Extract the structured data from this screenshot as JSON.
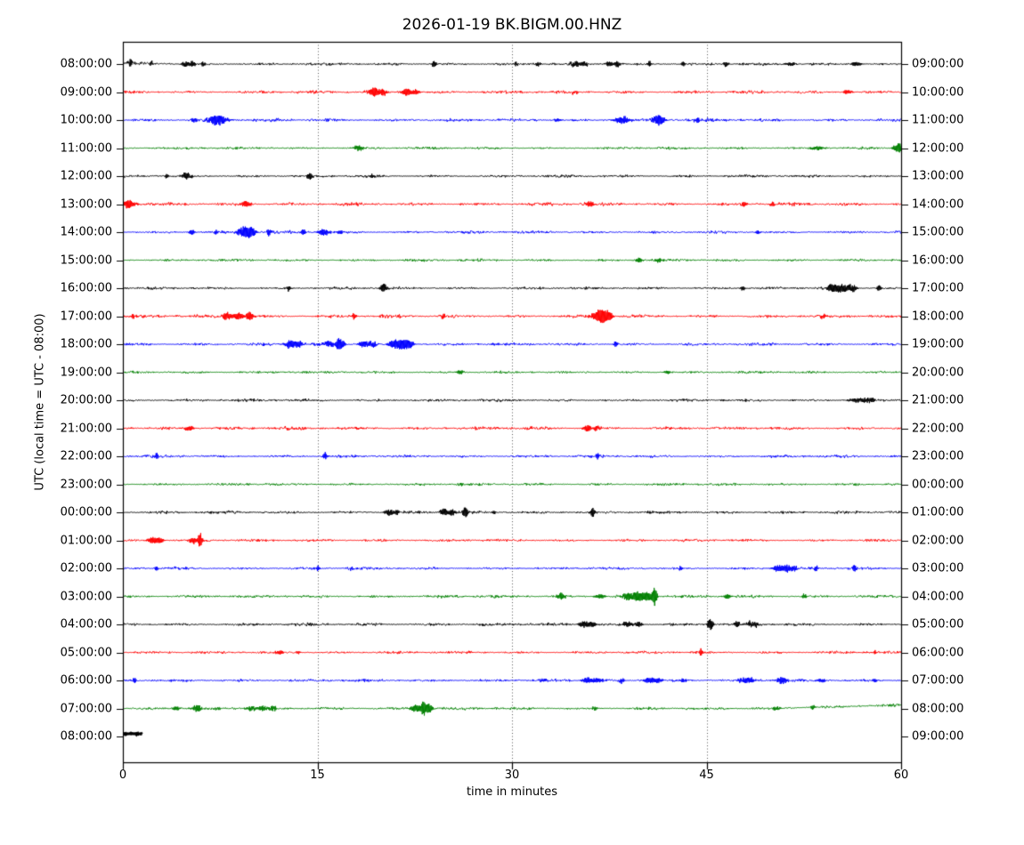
{
  "title": "2026-01-19 BK.BIGM.00.HNZ",
  "chart_data": {
    "type": "line",
    "subtype": "seismic-helicorder-dayplot",
    "title": "2026-01-19 BK.BIGM.00.HNZ",
    "xlabel": "time in minutes",
    "ylabel": "UTC (local time = UTC - 08:00)",
    "xlim": [
      0,
      60
    ],
    "x_ticks": [
      0,
      15,
      30,
      45,
      60
    ],
    "grid_minutes": [
      15,
      30,
      45
    ],
    "grid_style": "vertical-dotted",
    "minutes_per_row": 60,
    "color_cycle": [
      "#000000",
      "#ff0000",
      "#0000ff",
      "#008000"
    ],
    "events_format": "[minute, amplitude_px, width_min]",
    "rows": [
      {
        "left_label": "08:00:00",
        "right_label": "09:00:00",
        "color": "#000000",
        "noise": 1.5,
        "span": [
          0,
          60
        ],
        "drift": [
          [
            0,
            -1.5
          ],
          [
            4,
            0
          ],
          [
            60,
            0
          ]
        ],
        "events": [
          [
            0.6,
            4,
            0.15
          ],
          [
            2.2,
            3,
            0.1
          ],
          [
            4.8,
            3.5,
            0.2
          ],
          [
            5.4,
            3.5,
            0.15
          ],
          [
            6.2,
            3,
            0.1
          ],
          [
            24,
            4,
            0.12
          ],
          [
            30.3,
            3,
            0.1
          ],
          [
            32,
            2.5,
            0.15
          ],
          [
            34.9,
            3.5,
            0.25
          ],
          [
            35.6,
            3.5,
            0.2
          ],
          [
            37.5,
            3,
            0.2
          ],
          [
            38.1,
            3.5,
            0.15
          ],
          [
            40.6,
            3,
            0.1
          ],
          [
            43.2,
            3,
            0.1
          ],
          [
            46.5,
            3.5,
            0.12
          ],
          [
            51.5,
            2,
            0.3
          ],
          [
            56.5,
            2.5,
            0.3
          ]
        ]
      },
      {
        "left_label": "09:00:00",
        "right_label": "10:00:00",
        "color": "#ff0000",
        "noise": 1.7,
        "span": [
          0,
          60
        ],
        "events": [
          [
            19.4,
            5,
            0.35
          ],
          [
            20.1,
            3.5,
            0.2
          ],
          [
            21.9,
            4,
            0.3
          ],
          [
            22.6,
            3,
            0.2
          ],
          [
            34.9,
            2,
            0.2
          ],
          [
            55.9,
            2.5,
            0.25
          ]
        ]
      },
      {
        "left_label": "10:00:00",
        "right_label": "11:00:00",
        "color": "#0000ff",
        "noise": 1.7,
        "span": [
          0,
          60
        ],
        "events": [
          [
            5.5,
            3,
            0.15
          ],
          [
            7.3,
            6,
            0.5
          ],
          [
            33.5,
            2,
            0.2
          ],
          [
            38.5,
            4,
            0.45
          ],
          [
            41.3,
            6,
            0.35
          ],
          [
            44.3,
            3.5,
            0.15
          ]
        ]
      },
      {
        "left_label": "11:00:00",
        "right_label": "12:00:00",
        "color": "#008000",
        "noise": 1.4,
        "span": [
          0,
          60
        ],
        "events": [
          [
            18.2,
            2.5,
            0.3
          ],
          [
            53.5,
            2.2,
            0.4
          ],
          [
            59.8,
            5,
            0.3
          ]
        ]
      },
      {
        "left_label": "12:00:00",
        "right_label": "13:00:00",
        "color": "#000000",
        "noise": 1.5,
        "span": [
          0,
          60
        ],
        "events": [
          [
            3.4,
            3,
            0.1
          ],
          [
            4.9,
            4.5,
            0.25
          ],
          [
            14.4,
            3.5,
            0.15
          ],
          [
            19.2,
            2.5,
            0.1
          ]
        ]
      },
      {
        "left_label": "13:00:00",
        "right_label": "14:00:00",
        "color": "#ff0000",
        "noise": 1.8,
        "span": [
          0,
          60
        ],
        "events": [
          [
            0.4,
            5,
            0.4
          ],
          [
            9.5,
            4,
            0.25
          ],
          [
            36,
            3,
            0.2
          ],
          [
            47.9,
            2.5,
            0.15
          ],
          [
            50,
            2,
            0.1
          ]
        ]
      },
      {
        "left_label": "14:00:00",
        "right_label": "15:00:00",
        "color": "#0000ff",
        "noise": 1.6,
        "span": [
          0,
          60
        ],
        "events": [
          [
            5.3,
            3.5,
            0.15
          ],
          [
            7.2,
            3,
            0.1
          ],
          [
            9.3,
            6,
            0.35
          ],
          [
            9.9,
            5,
            0.25
          ],
          [
            11.3,
            4,
            0.15
          ],
          [
            13.9,
            3.5,
            0.15
          ],
          [
            15.5,
            4,
            0.3
          ],
          [
            16.8,
            3,
            0.2
          ],
          [
            49,
            2.5,
            0.15
          ]
        ]
      },
      {
        "left_label": "15:00:00",
        "right_label": "16:00:00",
        "color": "#008000",
        "noise": 1.4,
        "span": [
          0,
          60
        ],
        "events": [
          [
            39.8,
            2.5,
            0.2
          ],
          [
            41.3,
            2.5,
            0.15
          ]
        ]
      },
      {
        "left_label": "16:00:00",
        "right_label": "17:00:00",
        "color": "#000000",
        "noise": 1.5,
        "span": [
          0,
          60
        ],
        "events": [
          [
            12.8,
            3.5,
            0.12
          ],
          [
            20.1,
            5,
            0.2
          ],
          [
            47.8,
            3,
            0.12
          ],
          [
            54.8,
            4,
            0.4
          ],
          [
            55.6,
            4.5,
            0.3
          ],
          [
            56.3,
            4,
            0.2
          ],
          [
            58.3,
            3.5,
            0.12
          ]
        ]
      },
      {
        "left_label": "17:00:00",
        "right_label": "18:00:00",
        "color": "#ff0000",
        "noise": 1.7,
        "span": [
          0,
          60
        ],
        "events": [
          [
            0.8,
            3,
            0.1
          ],
          [
            8,
            4,
            0.25
          ],
          [
            8.9,
            4.5,
            0.3
          ],
          [
            9.8,
            5,
            0.2
          ],
          [
            17.8,
            3.5,
            0.15
          ],
          [
            24.7,
            3,
            0.12
          ],
          [
            36.5,
            5,
            0.3
          ],
          [
            37,
            7,
            0.25
          ],
          [
            37.5,
            5,
            0.2
          ],
          [
            54,
            2.5,
            0.2
          ]
        ]
      },
      {
        "left_label": "18:00:00",
        "right_label": "19:00:00",
        "color": "#0000ff",
        "noise": 1.7,
        "span": [
          0,
          60
        ],
        "events": [
          [
            12.9,
            5,
            0.3
          ],
          [
            13.6,
            3.5,
            0.2
          ],
          [
            15.9,
            4,
            0.2
          ],
          [
            16.7,
            7,
            0.25
          ],
          [
            18.6,
            4,
            0.3
          ],
          [
            19.3,
            3.5,
            0.2
          ],
          [
            20.9,
            4.5,
            0.3
          ],
          [
            21.5,
            5,
            0.3
          ],
          [
            22.1,
            4.5,
            0.25
          ],
          [
            38,
            3,
            0.12
          ]
        ]
      },
      {
        "left_label": "19:00:00",
        "right_label": "20:00:00",
        "color": "#008000",
        "noise": 1.4,
        "span": [
          0,
          60
        ],
        "events": [
          [
            26,
            2,
            0.2
          ],
          [
            42,
            2,
            0.2
          ]
        ]
      },
      {
        "left_label": "20:00:00",
        "right_label": "21:00:00",
        "color": "#000000",
        "noise": 1.5,
        "span": [
          0,
          60
        ],
        "events": [
          [
            14,
            1.8,
            0.2
          ],
          [
            56.6,
            2.5,
            0.5
          ],
          [
            57.6,
            2.5,
            0.3
          ]
        ]
      },
      {
        "left_label": "21:00:00",
        "right_label": "22:00:00",
        "color": "#ff0000",
        "noise": 1.8,
        "span": [
          0,
          60
        ],
        "events": [
          [
            5.1,
            3,
            0.25
          ],
          [
            35.8,
            4,
            0.2
          ],
          [
            36.6,
            2.5,
            0.3
          ]
        ]
      },
      {
        "left_label": "22:00:00",
        "right_label": "23:00:00",
        "color": "#0000ff",
        "noise": 1.6,
        "span": [
          0,
          60
        ],
        "events": [
          [
            2.6,
            3,
            0.12
          ],
          [
            15.6,
            4,
            0.12
          ],
          [
            36.6,
            3,
            0.1
          ]
        ]
      },
      {
        "left_label": "23:00:00",
        "right_label": "00:00:00",
        "color": "#008000",
        "noise": 1.5,
        "span": [
          0,
          60
        ],
        "events": [
          [
            26.1,
            2,
            0.15
          ]
        ]
      },
      {
        "left_label": "00:00:00",
        "right_label": "01:00:00",
        "color": "#000000",
        "noise": 1.7,
        "span": [
          0,
          60
        ],
        "events": [
          [
            20.5,
            3.5,
            0.25
          ],
          [
            21.1,
            3,
            0.15
          ],
          [
            24.8,
            4,
            0.25
          ],
          [
            25.4,
            3.5,
            0.15
          ],
          [
            26.4,
            6,
            0.15
          ],
          [
            28.6,
            2.5,
            0.1
          ],
          [
            36.2,
            4.5,
            0.15
          ]
        ]
      },
      {
        "left_label": "01:00:00",
        "right_label": "02:00:00",
        "color": "#ff0000",
        "noise": 1.5,
        "span": [
          0,
          60
        ],
        "events": [
          [
            2.3,
            3.5,
            0.3
          ],
          [
            2.9,
            3,
            0.2
          ],
          [
            5.4,
            3.5,
            0.2
          ],
          [
            5.95,
            9,
            0.12
          ]
        ]
      },
      {
        "left_label": "02:00:00",
        "right_label": "03:00:00",
        "color": "#0000ff",
        "noise": 1.5,
        "span": [
          0,
          60
        ],
        "events": [
          [
            2.6,
            2.5,
            0.1
          ],
          [
            15,
            2.5,
            0.1
          ],
          [
            17.6,
            2.2,
            0.1
          ],
          [
            43,
            2.5,
            0.1
          ],
          [
            50.5,
            3.5,
            0.3
          ],
          [
            51.2,
            4,
            0.25
          ],
          [
            51.8,
            3.5,
            0.2
          ],
          [
            53.5,
            3,
            0.15
          ],
          [
            56.4,
            3.5,
            0.1
          ]
        ]
      },
      {
        "left_label": "03:00:00",
        "right_label": "04:00:00",
        "color": "#008000",
        "noise": 1.6,
        "span": [
          0,
          60
        ],
        "events": [
          [
            33.8,
            4,
            0.25
          ],
          [
            36.8,
            2.5,
            0.3
          ],
          [
            38.9,
            4,
            0.3
          ],
          [
            39.6,
            4.5,
            0.25
          ],
          [
            40.1,
            4.5,
            0.25
          ],
          [
            40.6,
            4,
            0.2
          ],
          [
            41,
            11,
            0.12
          ],
          [
            46.6,
            2.5,
            0.2
          ],
          [
            52.5,
            2.5,
            0.15
          ]
        ]
      },
      {
        "left_label": "04:00:00",
        "right_label": "05:00:00",
        "color": "#000000",
        "noise": 1.7,
        "span": [
          0,
          60
        ],
        "events": [
          [
            35.5,
            3.5,
            0.3
          ],
          [
            36.2,
            3.5,
            0.2
          ],
          [
            38.9,
            3,
            0.3
          ],
          [
            39.8,
            3,
            0.2
          ],
          [
            45.3,
            7,
            0.15
          ],
          [
            47.3,
            3,
            0.15
          ],
          [
            48.3,
            3.5,
            0.25
          ],
          [
            48.8,
            3,
            0.15
          ]
        ]
      },
      {
        "left_label": "05:00:00",
        "right_label": "06:00:00",
        "color": "#ff0000",
        "noise": 1.5,
        "span": [
          0,
          60
        ],
        "events": [
          [
            12.1,
            2.5,
            0.2
          ],
          [
            13.5,
            2,
            0.15
          ],
          [
            44.6,
            4,
            0.12
          ],
          [
            58,
            2.5,
            0.1
          ]
        ]
      },
      {
        "left_label": "06:00:00",
        "right_label": "07:00:00",
        "color": "#0000ff",
        "noise": 1.6,
        "span": [
          0,
          60
        ],
        "events": [
          [
            0.9,
            3.5,
            0.12
          ],
          [
            32.4,
            2.5,
            0.15
          ],
          [
            35.8,
            3,
            0.3
          ],
          [
            36.6,
            3,
            0.25
          ],
          [
            38.5,
            2.5,
            0.15
          ],
          [
            40.6,
            3.5,
            0.3
          ],
          [
            41.3,
            3,
            0.2
          ],
          [
            43.2,
            2.5,
            0.15
          ],
          [
            47.8,
            3.5,
            0.25
          ],
          [
            48.4,
            3,
            0.2
          ],
          [
            50.8,
            4,
            0.3
          ],
          [
            53.9,
            2.5,
            0.2
          ],
          [
            58,
            2.5,
            0.12
          ]
        ]
      },
      {
        "left_label": "07:00:00",
        "right_label": "08:00:00",
        "color": "#008000",
        "noise": 1.6,
        "span": [
          0,
          60
        ],
        "drift": [
          [
            0,
            0
          ],
          [
            50,
            0
          ],
          [
            60,
            -4
          ]
        ],
        "events": [
          [
            4.1,
            2.5,
            0.2
          ],
          [
            5.7,
            4,
            0.3
          ],
          [
            9.9,
            2.5,
            0.3
          ],
          [
            10.8,
            3,
            0.25
          ],
          [
            11.6,
            3,
            0.2
          ],
          [
            22.6,
            4,
            0.3
          ],
          [
            23.2,
            8,
            0.15
          ],
          [
            23.6,
            5,
            0.2
          ],
          [
            36.4,
            2.5,
            0.15
          ],
          [
            50.4,
            2.5,
            0.2
          ],
          [
            53.2,
            2.5,
            0.15
          ]
        ]
      },
      {
        "left_label": "08:00:00",
        "right_label": "09:00:00",
        "color": "#000000",
        "noise": 0.9,
        "span": [
          0,
          1.5
        ],
        "lw": 3,
        "drift": [
          [
            0,
            -3
          ],
          [
            1.5,
            -3
          ]
        ],
        "events": []
      }
    ]
  }
}
